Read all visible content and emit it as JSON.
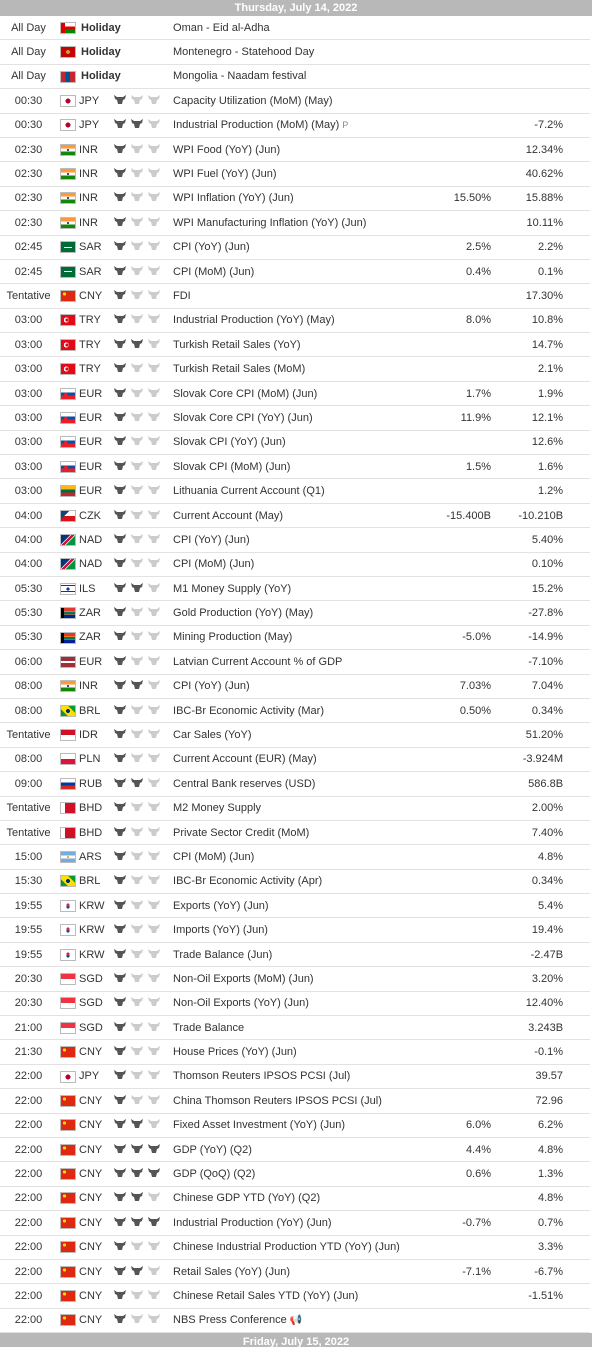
{
  "day_header": "Thursday, July 14, 2022",
  "day_footer": "Friday, July 15, 2022",
  "colors": {
    "header_bg": "#b8b8b8",
    "bull_on": "#555555",
    "bull_off": "#cccccc",
    "row_border": "#e2e2e2"
  },
  "holidays": [
    {
      "time": "All Day",
      "flag": "om",
      "label": "Holiday",
      "event": "Oman - Eid al-Adha"
    },
    {
      "time": "All Day",
      "flag": "me",
      "label": "Holiday",
      "event": "Montenegro - Statehood Day"
    },
    {
      "time": "All Day",
      "flag": "mn",
      "label": "Holiday",
      "event": "Mongolia - Naadam festival"
    }
  ],
  "events": [
    {
      "time": "00:30",
      "flag": "jp",
      "currency": "JPY",
      "importance": 1,
      "event": "Capacity Utilization (MoM) (May)",
      "forecast": "",
      "previous": ""
    },
    {
      "time": "00:30",
      "flag": "jp",
      "currency": "JPY",
      "importance": 2,
      "event": "Industrial Production (MoM) (May)",
      "preliminary": "P",
      "forecast": "",
      "previous": "-7.2%"
    },
    {
      "time": "02:30",
      "flag": "in",
      "currency": "INR",
      "importance": 1,
      "event": "WPI Food (YoY) (Jun)",
      "forecast": "",
      "previous": "12.34%"
    },
    {
      "time": "02:30",
      "flag": "in",
      "currency": "INR",
      "importance": 1,
      "event": "WPI Fuel (YoY) (Jun)",
      "forecast": "",
      "previous": "40.62%"
    },
    {
      "time": "02:30",
      "flag": "in",
      "currency": "INR",
      "importance": 1,
      "event": "WPI Inflation (YoY) (Jun)",
      "forecast": "15.50%",
      "previous": "15.88%"
    },
    {
      "time": "02:30",
      "flag": "in",
      "currency": "INR",
      "importance": 1,
      "event": "WPI Manufacturing Inflation (YoY) (Jun)",
      "forecast": "",
      "previous": "10.11%"
    },
    {
      "time": "02:45",
      "flag": "sa",
      "currency": "SAR",
      "importance": 1,
      "event": "CPI (YoY) (Jun)",
      "forecast": "2.5%",
      "previous": "2.2%"
    },
    {
      "time": "02:45",
      "flag": "sa",
      "currency": "SAR",
      "importance": 1,
      "event": "CPI (MoM) (Jun)",
      "forecast": "0.4%",
      "previous": "0.1%"
    },
    {
      "time": "Tentative",
      "flag": "cn",
      "currency": "CNY",
      "importance": 1,
      "event": "FDI",
      "forecast": "",
      "previous": "17.30%"
    },
    {
      "time": "03:00",
      "flag": "tr",
      "currency": "TRY",
      "importance": 1,
      "event": "Industrial Production (YoY) (May)",
      "forecast": "8.0%",
      "previous": "10.8%"
    },
    {
      "time": "03:00",
      "flag": "tr",
      "currency": "TRY",
      "importance": 2,
      "event": "Turkish Retail Sales (YoY)",
      "forecast": "",
      "previous": "14.7%"
    },
    {
      "time": "03:00",
      "flag": "tr",
      "currency": "TRY",
      "importance": 1,
      "event": "Turkish Retail Sales (MoM)",
      "forecast": "",
      "previous": "2.1%"
    },
    {
      "time": "03:00",
      "flag": "sk",
      "currency": "EUR",
      "importance": 1,
      "event": "Slovak Core CPI (MoM) (Jun)",
      "forecast": "1.7%",
      "previous": "1.9%"
    },
    {
      "time": "03:00",
      "flag": "sk",
      "currency": "EUR",
      "importance": 1,
      "event": "Slovak Core CPI (YoY) (Jun)",
      "forecast": "11.9%",
      "previous": "12.1%"
    },
    {
      "time": "03:00",
      "flag": "sk",
      "currency": "EUR",
      "importance": 1,
      "event": "Slovak CPI (YoY) (Jun)",
      "forecast": "",
      "previous": "12.6%"
    },
    {
      "time": "03:00",
      "flag": "sk",
      "currency": "EUR",
      "importance": 1,
      "event": "Slovak CPI (MoM) (Jun)",
      "forecast": "1.5%",
      "previous": "1.6%"
    },
    {
      "time": "03:00",
      "flag": "lt",
      "currency": "EUR",
      "importance": 1,
      "event": "Lithuania Current Account (Q1)",
      "forecast": "",
      "previous": "1.2%"
    },
    {
      "time": "04:00",
      "flag": "cz",
      "currency": "CZK",
      "importance": 1,
      "event": "Current Account (May)",
      "forecast": "-15.400B",
      "previous": "-10.210B"
    },
    {
      "time": "04:00",
      "flag": "na",
      "currency": "NAD",
      "importance": 1,
      "event": "CPI (YoY) (Jun)",
      "forecast": "",
      "previous": "5.40%"
    },
    {
      "time": "04:00",
      "flag": "na",
      "currency": "NAD",
      "importance": 1,
      "event": "CPI (MoM) (Jun)",
      "forecast": "",
      "previous": "0.10%"
    },
    {
      "time": "05:30",
      "flag": "il",
      "currency": "ILS",
      "importance": 2,
      "event": "M1 Money Supply (YoY)",
      "forecast": "",
      "previous": "15.2%"
    },
    {
      "time": "05:30",
      "flag": "za",
      "currency": "ZAR",
      "importance": 1,
      "event": "Gold Production (YoY) (May)",
      "forecast": "",
      "previous": "-27.8%"
    },
    {
      "time": "05:30",
      "flag": "za",
      "currency": "ZAR",
      "importance": 1,
      "event": "Mining Production (May)",
      "forecast": "-5.0%",
      "previous": "-14.9%"
    },
    {
      "time": "06:00",
      "flag": "lv",
      "currency": "EUR",
      "importance": 1,
      "event": "Latvian Current Account % of GDP",
      "forecast": "",
      "previous": "-7.10%"
    },
    {
      "time": "08:00",
      "flag": "in",
      "currency": "INR",
      "importance": 2,
      "event": "CPI (YoY) (Jun)",
      "forecast": "7.03%",
      "previous": "7.04%"
    },
    {
      "time": "08:00",
      "flag": "br",
      "currency": "BRL",
      "importance": 1,
      "event": "IBC-Br Economic Activity (Mar)",
      "forecast": "0.50%",
      "previous": "0.34%"
    },
    {
      "time": "Tentative",
      "flag": "id",
      "currency": "IDR",
      "importance": 1,
      "event": "Car Sales (YoY)",
      "forecast": "",
      "previous": "51.20%"
    },
    {
      "time": "08:00",
      "flag": "pl",
      "currency": "PLN",
      "importance": 1,
      "event": "Current Account (EUR) (May)",
      "forecast": "",
      "previous": "-3.924M"
    },
    {
      "time": "09:00",
      "flag": "ru",
      "currency": "RUB",
      "importance": 2,
      "event": "Central Bank reserves (USD)",
      "forecast": "",
      "previous": "586.8B"
    },
    {
      "time": "Tentative",
      "flag": "bh",
      "currency": "BHD",
      "importance": 1,
      "event": "M2 Money Supply",
      "forecast": "",
      "previous": "2.00%"
    },
    {
      "time": "Tentative",
      "flag": "bh",
      "currency": "BHD",
      "importance": 1,
      "event": "Private Sector Credit (MoM)",
      "forecast": "",
      "previous": "7.40%"
    },
    {
      "time": "15:00",
      "flag": "ar",
      "currency": "ARS",
      "importance": 1,
      "event": "CPI (MoM) (Jun)",
      "forecast": "",
      "previous": "4.8%"
    },
    {
      "time": "15:30",
      "flag": "br",
      "currency": "BRL",
      "importance": 1,
      "event": "IBC-Br Economic Activity (Apr)",
      "forecast": "",
      "previous": "0.34%"
    },
    {
      "time": "19:55",
      "flag": "kr",
      "currency": "KRW",
      "importance": 1,
      "event": "Exports (YoY) (Jun)",
      "forecast": "",
      "previous": "5.4%"
    },
    {
      "time": "19:55",
      "flag": "kr",
      "currency": "KRW",
      "importance": 1,
      "event": "Imports (YoY) (Jun)",
      "forecast": "",
      "previous": "19.4%"
    },
    {
      "time": "19:55",
      "flag": "kr",
      "currency": "KRW",
      "importance": 1,
      "event": "Trade Balance (Jun)",
      "forecast": "",
      "previous": "-2.47B"
    },
    {
      "time": "20:30",
      "flag": "sg",
      "currency": "SGD",
      "importance": 1,
      "event": "Non-Oil Exports (MoM) (Jun)",
      "forecast": "",
      "previous": "3.20%"
    },
    {
      "time": "20:30",
      "flag": "sg",
      "currency": "SGD",
      "importance": 1,
      "event": "Non-Oil Exports (YoY) (Jun)",
      "forecast": "",
      "previous": "12.40%"
    },
    {
      "time": "21:00",
      "flag": "sg",
      "currency": "SGD",
      "importance": 1,
      "event": "Trade Balance",
      "forecast": "",
      "previous": "3.243B"
    },
    {
      "time": "21:30",
      "flag": "cn",
      "currency": "CNY",
      "importance": 1,
      "event": "House Prices (YoY) (Jun)",
      "forecast": "",
      "previous": "-0.1%"
    },
    {
      "time": "22:00",
      "flag": "jp",
      "currency": "JPY",
      "importance": 1,
      "event": "Thomson Reuters IPSOS PCSI (Jul)",
      "forecast": "",
      "previous": "39.57"
    },
    {
      "time": "22:00",
      "flag": "cn",
      "currency": "CNY",
      "importance": 1,
      "event": "China Thomson Reuters IPSOS PCSI (Jul)",
      "forecast": "",
      "previous": "72.96"
    },
    {
      "time": "22:00",
      "flag": "cn",
      "currency": "CNY",
      "importance": 2,
      "event": "Fixed Asset Investment (YoY) (Jun)",
      "forecast": "6.0%",
      "previous": "6.2%"
    },
    {
      "time": "22:00",
      "flag": "cn",
      "currency": "CNY",
      "importance": 3,
      "event": "GDP (YoY) (Q2)",
      "forecast": "4.4%",
      "previous": "4.8%"
    },
    {
      "time": "22:00",
      "flag": "cn",
      "currency": "CNY",
      "importance": 3,
      "event": "GDP (QoQ) (Q2)",
      "forecast": "0.6%",
      "previous": "1.3%"
    },
    {
      "time": "22:00",
      "flag": "cn",
      "currency": "CNY",
      "importance": 2,
      "event": "Chinese GDP YTD (YoY) (Q2)",
      "forecast": "",
      "previous": "4.8%"
    },
    {
      "time": "22:00",
      "flag": "cn",
      "currency": "CNY",
      "importance": 3,
      "event": "Industrial Production (YoY) (Jun)",
      "forecast": "-0.7%",
      "previous": "0.7%"
    },
    {
      "time": "22:00",
      "flag": "cn",
      "currency": "CNY",
      "importance": 1,
      "event": "Chinese Industrial Production YTD (YoY) (Jun)",
      "forecast": "",
      "previous": "3.3%"
    },
    {
      "time": "22:00",
      "flag": "cn",
      "currency": "CNY",
      "importance": 2,
      "event": "Retail Sales (YoY) (Jun)",
      "forecast": "-7.1%",
      "previous": "-6.7%"
    },
    {
      "time": "22:00",
      "flag": "cn",
      "currency": "CNY",
      "importance": 1,
      "event": "Chinese Retail Sales YTD (YoY) (Jun)",
      "forecast": "",
      "previous": "-1.51%"
    },
    {
      "time": "22:00",
      "flag": "cn",
      "currency": "CNY",
      "importance": 1,
      "event": "NBS Press Conference",
      "speech_icon": "megaphone-icon",
      "forecast": "",
      "previous": ""
    }
  ]
}
